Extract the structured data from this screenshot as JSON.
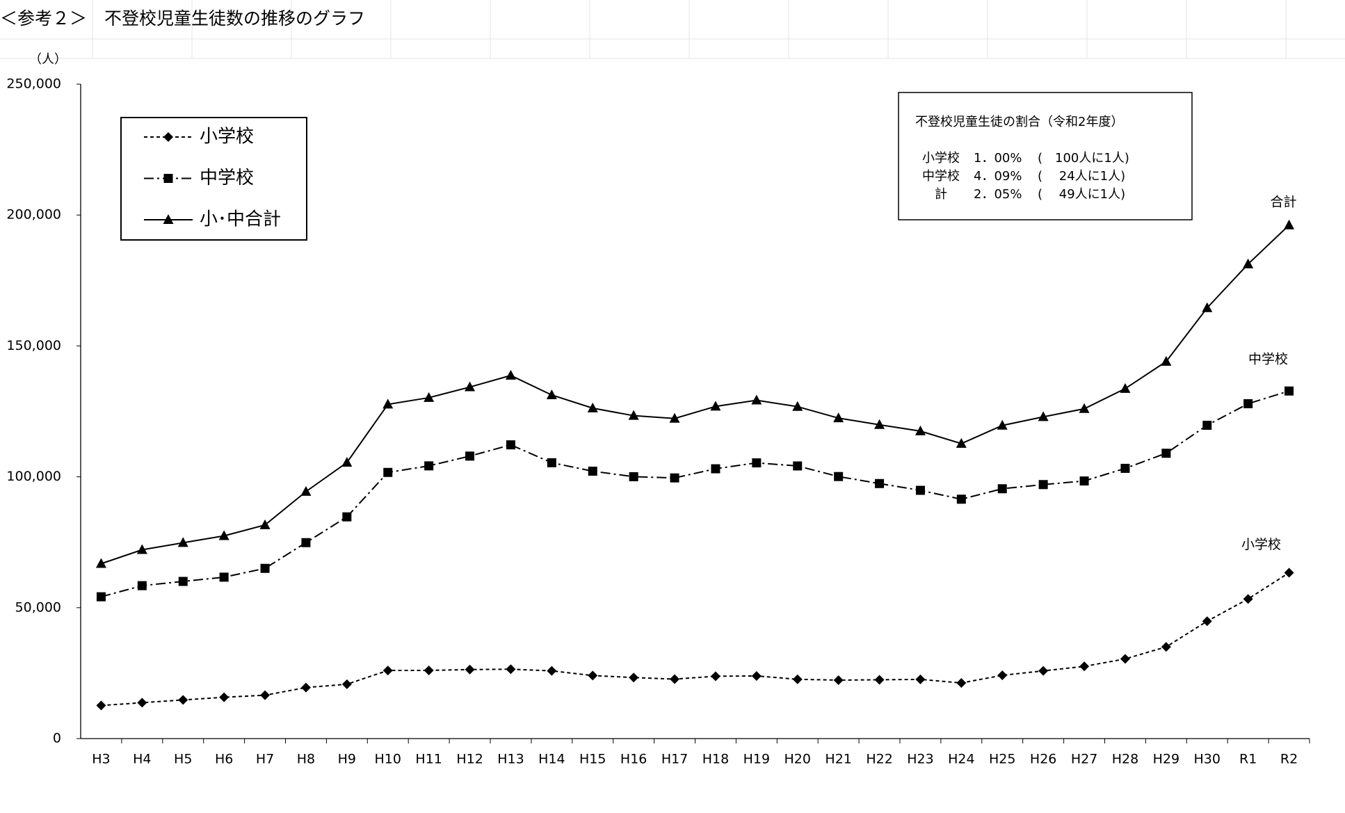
{
  "chart_data": {
    "type": "line",
    "title": "＜参考２＞　不登校児童生徒数の推移のグラフ",
    "y_unit": "（人）",
    "categories": [
      "H3",
      "H4",
      "H5",
      "H6",
      "H7",
      "H8",
      "H9",
      "H10",
      "H11",
      "H12",
      "H13",
      "H14",
      "H15",
      "H16",
      "H17",
      "H18",
      "H19",
      "H20",
      "H21",
      "H22",
      "H23",
      "H24",
      "H25",
      "H26",
      "H27",
      "H28",
      "H29",
      "H30",
      "R1",
      "R2"
    ],
    "series": [
      {
        "name": "小学校",
        "end_label": "小学校",
        "color": "#000000",
        "line_style": "dashed",
        "marker": "diamond",
        "values": [
          12645,
          13710,
          14769,
          15786,
          16569,
          19498,
          20765,
          26017,
          26047,
          26373,
          26511,
          25869,
          24077,
          23318,
          22709,
          23825,
          23927,
          22652,
          22327,
          22463,
          22622,
          21243,
          24175,
          25864,
          27583,
          30448,
          35032,
          44841,
          53350,
          63350
        ]
      },
      {
        "name": "中学校",
        "end_label": "中学校",
        "color": "#000000",
        "line_style": "dashdot",
        "marker": "square",
        "values": [
          54172,
          58421,
          60039,
          61663,
          65022,
          74853,
          84701,
          101675,
          104180,
          107913,
          112211,
          105383,
          102149,
          100040,
          99578,
          103069,
          105328,
          104153,
          100105,
          97428,
          94836,
          91446,
          95442,
          97033,
          98408,
          103235,
          108999,
          119687,
          127922,
          132777
        ]
      },
      {
        "name": "小･中合計",
        "end_label": "合計",
        "color": "#000000",
        "line_style": "solid",
        "marker": "triangle",
        "values": [
          66817,
          72131,
          74808,
          77449,
          81591,
          94351,
          105466,
          127692,
          130227,
          134286,
          138722,
          131252,
          126226,
          123358,
          122287,
          126894,
          129255,
          126805,
          122432,
          119891,
          117458,
          112689,
          119617,
          122897,
          125991,
          133683,
          144031,
          164528,
          181272,
          196127
        ]
      }
    ],
    "ylim": [
      0,
      250000
    ],
    "yticks": [
      0,
      {
        "value": 50000,
        "label": "50,000"
      },
      {
        "value": 100000,
        "label": "100,000"
      },
      {
        "value": 150000,
        "label": "150,000"
      },
      {
        "value": 200000,
        "label": "200,000"
      },
      {
        "value": 250000,
        "label": "250,000"
      }
    ],
    "grid": false,
    "legend": "upper left",
    "annotation": {
      "title": "不登校児童生徒の割合（令和2年度）",
      "rows": [
        [
          "小学校",
          "1．00%",
          "(　100人に1人)"
        ],
        [
          "中学校",
          "4．09%",
          "(　 24人に1人)"
        ],
        [
          "計",
          "2．05%",
          "(　 49人に1人)"
        ]
      ]
    }
  }
}
